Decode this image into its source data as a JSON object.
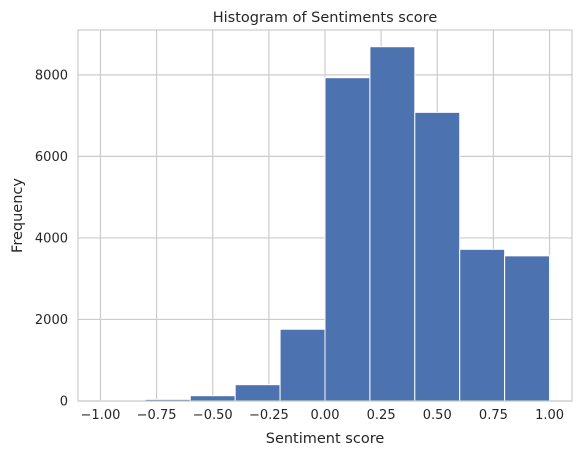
{
  "chart_data": {
    "type": "bar",
    "title": "Histogram of Sentiments score",
    "xlabel": "Sentiment score",
    "ylabel": "Frequency",
    "bin_edges": [
      -1.0,
      -0.8,
      -0.6,
      -0.4,
      -0.2,
      0.0,
      0.2,
      0.4,
      0.6,
      0.8,
      1.0
    ],
    "values": [
      15,
      40,
      130,
      400,
      1760,
      7930,
      8690,
      7080,
      3720,
      3560
    ],
    "xlim": [
      -1.1,
      1.1
    ],
    "ylim": [
      0,
      9100
    ],
    "xticks": [
      -1.0,
      -0.75,
      -0.5,
      -0.25,
      0.0,
      0.25,
      0.5,
      0.75,
      1.0
    ],
    "xtick_labels": [
      "−1.00",
      "−0.75",
      "−0.50",
      "−0.25",
      "0.00",
      "0.25",
      "0.50",
      "0.75",
      "1.00"
    ],
    "yticks": [
      0,
      2000,
      4000,
      6000,
      8000
    ],
    "ytick_labels": [
      "0",
      "2000",
      "4000",
      "6000",
      "8000"
    ],
    "grid": true,
    "colors": {
      "bar": "#4c72b0",
      "bar_edge": "#ffffff",
      "grid": "#cccccc",
      "spine": "#cccccc",
      "text": "#262626"
    }
  }
}
